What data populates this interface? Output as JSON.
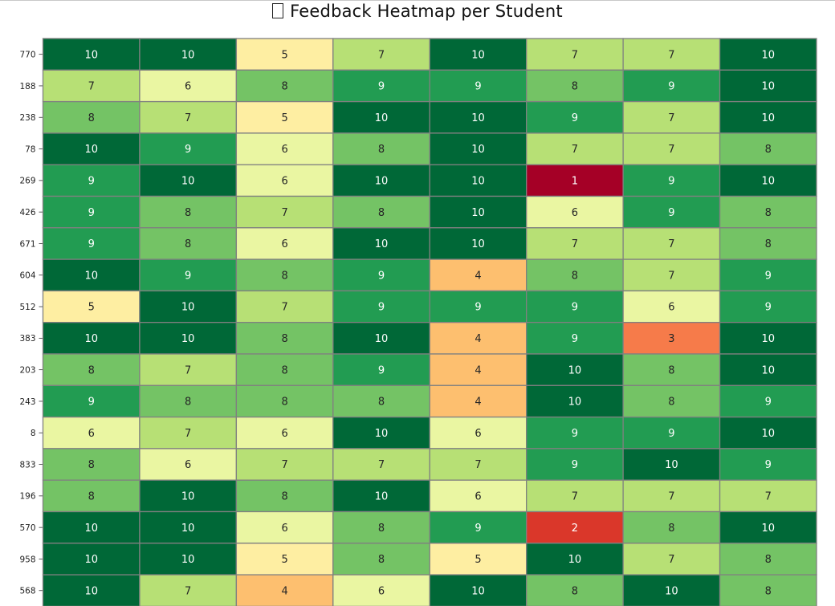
{
  "title": "Feedback Heatmap per Student",
  "title_icon": "chart-emoji-placeholder-icon",
  "colors": {
    "palette": [
      "#a50026",
      "#d73027",
      "#f46d43",
      "#fdae61",
      "#fee08b",
      "#ffffbf",
      "#d9ef8b",
      "#a6d96a",
      "#66bd63",
      "#1a9850",
      "#006837"
    ],
    "cell_border": "#808080",
    "light_text": "#ffffff",
    "dark_text": "#262626"
  },
  "chart_data": {
    "type": "heatmap",
    "title": "Feedback Heatmap per Student",
    "colormap": "RdYlGn",
    "value_range": [
      1,
      10
    ],
    "annotated": true,
    "columns": 8,
    "rows": [
      "770",
      "188",
      "238",
      "78",
      "269",
      "426",
      "671",
      "604",
      "512",
      "383",
      "203",
      "243",
      "8",
      "833",
      "196",
      "570",
      "958",
      "568"
    ],
    "values": [
      [
        10,
        10,
        5,
        7,
        10,
        7,
        7,
        10
      ],
      [
        7,
        6,
        8,
        9,
        9,
        8,
        9,
        10
      ],
      [
        8,
        7,
        5,
        10,
        10,
        9,
        7,
        10
      ],
      [
        10,
        9,
        6,
        8,
        10,
        7,
        7,
        8
      ],
      [
        9,
        10,
        6,
        10,
        10,
        1,
        9,
        10
      ],
      [
        9,
        8,
        7,
        8,
        10,
        6,
        9,
        8
      ],
      [
        9,
        8,
        6,
        10,
        10,
        7,
        7,
        8
      ],
      [
        10,
        9,
        8,
        9,
        4,
        8,
        7,
        9
      ],
      [
        5,
        10,
        7,
        9,
        9,
        9,
        6,
        9
      ],
      [
        10,
        10,
        8,
        10,
        4,
        9,
        3,
        10
      ],
      [
        8,
        7,
        8,
        9,
        4,
        10,
        8,
        10
      ],
      [
        9,
        8,
        8,
        8,
        4,
        10,
        8,
        9
      ],
      [
        6,
        7,
        6,
        10,
        6,
        9,
        9,
        10
      ],
      [
        8,
        6,
        7,
        7,
        7,
        9,
        10,
        9
      ],
      [
        8,
        10,
        8,
        10,
        6,
        7,
        7,
        7
      ],
      [
        10,
        10,
        6,
        8,
        9,
        2,
        8,
        10
      ],
      [
        10,
        10,
        5,
        8,
        5,
        10,
        7,
        8
      ],
      [
        10,
        7,
        4,
        6,
        10,
        8,
        10,
        8
      ]
    ]
  }
}
